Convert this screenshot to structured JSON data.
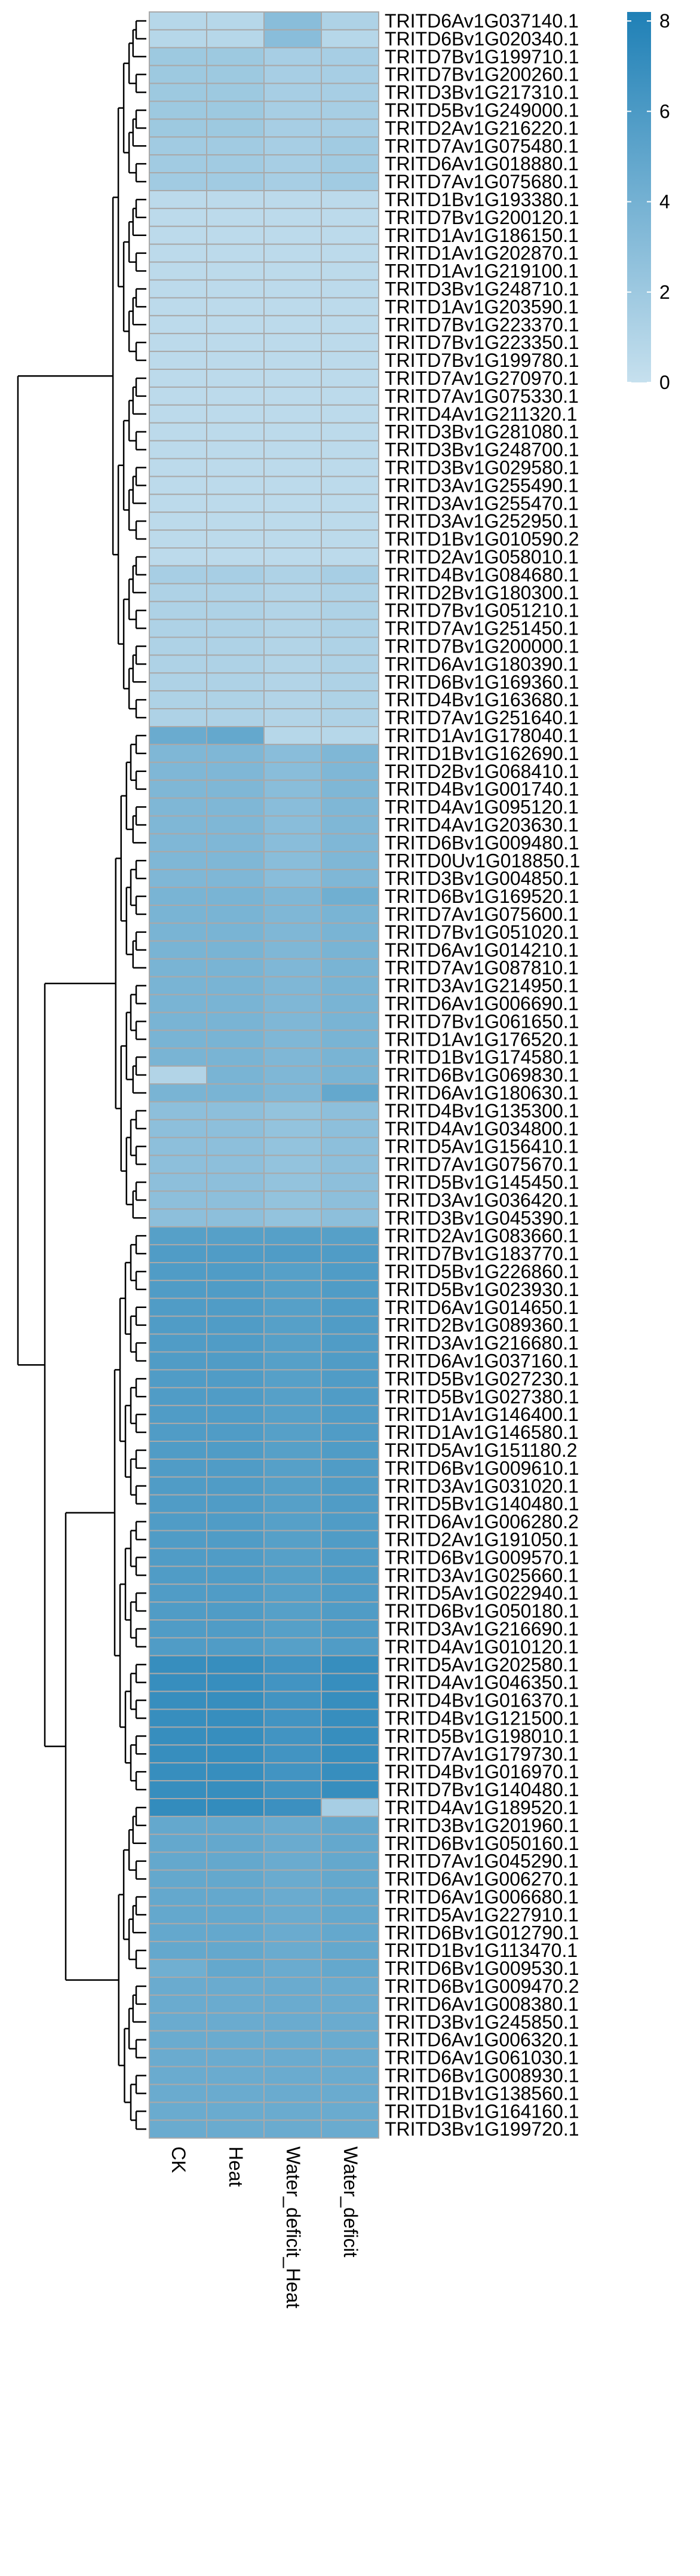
{
  "chart_data": {
    "type": "heatmap",
    "columns": [
      "CK",
      "Heat",
      "Water_deficit_Heat",
      "Water_deficit"
    ],
    "rows": [
      "TRITD6Av1G037140.1",
      "TRITD6Bv1G020340.1",
      "TRITD7Bv1G199710.1",
      "TRITD7Bv1G200260.1",
      "TRITD3Bv1G217310.1",
      "TRITD5Bv1G249000.1",
      "TRITD2Av1G216220.1",
      "TRITD7Av1G075480.1",
      "TRITD6Av1G018880.1",
      "TRITD7Av1G075680.1",
      "TRITD1Bv1G193380.1",
      "TRITD7Bv1G200120.1",
      "TRITD1Av1G186150.1",
      "TRITD1Av1G202870.1",
      "TRITD1Av1G219100.1",
      "TRITD3Bv1G248710.1",
      "TRITD1Av1G203590.1",
      "TRITD7Bv1G223370.1",
      "TRITD7Bv1G223350.1",
      "TRITD7Bv1G199780.1",
      "TRITD7Av1G270970.1",
      "TRITD7Av1G075330.1",
      "TRITD4Av1G211320.1",
      "TRITD3Bv1G281080.1",
      "TRITD3Bv1G248700.1",
      "TRITD3Bv1G029580.1",
      "TRITD3Av1G255490.1",
      "TRITD3Av1G255470.1",
      "TRITD3Av1G252950.1",
      "TRITD1Bv1G010590.2",
      "TRITD2Av1G058010.1",
      "TRITD4Bv1G084680.1",
      "TRITD2Bv1G180300.1",
      "TRITD7Bv1G051210.1",
      "TRITD7Av1G251450.1",
      "TRITD7Bv1G200000.1",
      "TRITD6Av1G180390.1",
      "TRITD6Bv1G169360.1",
      "TRITD4Bv1G163680.1",
      "TRITD7Av1G251640.1",
      "TRITD1Av1G178040.1",
      "TRITD1Bv1G162690.1",
      "TRITD2Bv1G068410.1",
      "TRITD4Bv1G001740.1",
      "TRITD4Av1G095120.1",
      "TRITD4Av1G203630.1",
      "TRITD6Bv1G009480.1",
      "TRITD0Uv1G018850.1",
      "TRITD3Bv1G004850.1",
      "TRITD6Bv1G169520.1",
      "TRITD7Av1G075600.1",
      "TRITD7Bv1G051020.1",
      "TRITD6Av1G014210.1",
      "TRITD7Av1G087810.1",
      "TRITD3Av1G214950.1",
      "TRITD6Av1G006690.1",
      "TRITD7Bv1G061650.1",
      "TRITD1Av1G176520.1",
      "TRITD1Bv1G174580.1",
      "TRITD6Bv1G069830.1",
      "TRITD6Av1G180630.1",
      "TRITD4Bv1G135300.1",
      "TRITD4Av1G034800.1",
      "TRITD5Av1G156410.1",
      "TRITD7Av1G075670.1",
      "TRITD5Bv1G145450.1",
      "TRITD3Av1G036420.1",
      "TRITD3Bv1G045390.1",
      "TRITD2Av1G083660.1",
      "TRITD7Bv1G183770.1",
      "TRITD5Bv1G226860.1",
      "TRITD5Bv1G023930.1",
      "TRITD6Av1G014650.1",
      "TRITD2Bv1G089360.1",
      "TRITD3Av1G216680.1",
      "TRITD6Av1G037160.1",
      "TRITD5Bv1G027230.1",
      "TRITD5Bv1G027380.1",
      "TRITD1Av1G146400.1",
      "TRITD1Av1G146580.1",
      "TRITD5Av1G151180.2",
      "TRITD6Bv1G009610.1",
      "TRITD3Av1G031020.1",
      "TRITD5Bv1G140480.1",
      "TRITD6Av1G006280.2",
      "TRITD2Av1G191050.1",
      "TRITD6Bv1G009570.1",
      "TRITD3Av1G025660.1",
      "TRITD5Av1G022940.1",
      "TRITD6Bv1G050180.1",
      "TRITD3Av1G216690.1",
      "TRITD4Av1G010120.1",
      "TRITD5Av1G202580.1",
      "TRITD4Av1G046350.1",
      "TRITD4Bv1G016370.1",
      "TRITD4Bv1G121500.1",
      "TRITD5Bv1G198010.1",
      "TRITD7Av1G179730.1",
      "TRITD4Bv1G016970.1",
      "TRITD7Bv1G140480.1",
      "TRITD4Av1G189520.1",
      "TRITD3Bv1G201960.1",
      "TRITD6Bv1G050160.1",
      "TRITD7Av1G045290.1",
      "TRITD6Av1G006270.1",
      "TRITD6Av1G006680.1",
      "TRITD5Av1G227910.1",
      "TRITD6Bv1G012790.1",
      "TRITD1Bv1G113470.1",
      "TRITD6Bv1G009530.1",
      "TRITD6Bv1G009470.2",
      "TRITD6Av1G008380.1",
      "TRITD3Bv1G245850.1",
      "TRITD6Av1G006320.1",
      "TRITD6Av1G061030.1",
      "TRITD6Bv1G008930.1",
      "TRITD1Bv1G138560.1",
      "TRITD1Bv1G164160.1",
      "TRITD3Bv1G199720.1"
    ],
    "values": [
      [
        0.8,
        0.8,
        3.0,
        1.2
      ],
      [
        0.8,
        0.8,
        3.0,
        0.8
      ],
      [
        2.0,
        2.0,
        1.5,
        1.5
      ],
      [
        2.0,
        2.0,
        1.5,
        1.5
      ],
      [
        2.0,
        2.0,
        1.5,
        1.5
      ],
      [
        2.0,
        2.0,
        1.5,
        1.5
      ],
      [
        2.0,
        2.0,
        1.5,
        1.5
      ],
      [
        1.8,
        1.8,
        1.5,
        1.8
      ],
      [
        1.8,
        1.8,
        1.5,
        1.8
      ],
      [
        1.8,
        1.8,
        1.5,
        1.8
      ],
      [
        0.5,
        0.5,
        0.5,
        0.5
      ],
      [
        0.5,
        0.5,
        0.5,
        0.5
      ],
      [
        0.5,
        0.5,
        0.5,
        0.5
      ],
      [
        0.5,
        0.5,
        0.5,
        0.5
      ],
      [
        0.5,
        0.5,
        0.5,
        0.5
      ],
      [
        0.5,
        0.5,
        0.5,
        0.5
      ],
      [
        0.5,
        0.5,
        0.5,
        0.5
      ],
      [
        0.5,
        0.5,
        0.5,
        0.5
      ],
      [
        0.5,
        0.5,
        0.5,
        0.5
      ],
      [
        0.5,
        0.5,
        0.5,
        0.5
      ],
      [
        0.5,
        0.5,
        0.5,
        0.5
      ],
      [
        0.5,
        0.5,
        0.5,
        0.5
      ],
      [
        0.5,
        0.5,
        0.5,
        0.5
      ],
      [
        0.5,
        0.5,
        0.5,
        0.5
      ],
      [
        0.5,
        0.5,
        0.5,
        0.5
      ],
      [
        0.5,
        0.5,
        0.5,
        0.5
      ],
      [
        0.5,
        0.5,
        0.5,
        0.5
      ],
      [
        0.5,
        0.5,
        0.5,
        0.5
      ],
      [
        0.5,
        0.5,
        0.5,
        0.5
      ],
      [
        0.5,
        0.5,
        0.5,
        0.5
      ],
      [
        0.5,
        0.5,
        0.5,
        0.5
      ],
      [
        1.5,
        1.5,
        1.2,
        1.5
      ],
      [
        1.2,
        1.2,
        1.0,
        1.2
      ],
      [
        1.2,
        1.2,
        1.0,
        1.2
      ],
      [
        1.2,
        1.2,
        1.0,
        1.2
      ],
      [
        1.2,
        1.2,
        1.0,
        1.2
      ],
      [
        1.2,
        1.2,
        1.0,
        1.2
      ],
      [
        1.2,
        1.2,
        1.0,
        1.2
      ],
      [
        1.2,
        1.2,
        1.0,
        1.2
      ],
      [
        1.2,
        1.2,
        1.0,
        1.2
      ],
      [
        4.5,
        4.8,
        0.8,
        0.8
      ],
      [
        3.5,
        3.5,
        3.0,
        3.5
      ],
      [
        3.5,
        3.5,
        3.0,
        3.5
      ],
      [
        3.5,
        3.5,
        3.0,
        3.5
      ],
      [
        3.5,
        3.5,
        3.0,
        3.5
      ],
      [
        3.5,
        3.5,
        3.0,
        3.5
      ],
      [
        3.5,
        3.5,
        3.0,
        3.5
      ],
      [
        3.5,
        3.5,
        3.0,
        3.5
      ],
      [
        3.5,
        3.5,
        3.0,
        3.5
      ],
      [
        3.8,
        3.8,
        3.5,
        4.2
      ],
      [
        3.8,
        3.8,
        3.5,
        3.8
      ],
      [
        3.8,
        3.8,
        3.5,
        3.8
      ],
      [
        3.8,
        3.8,
        3.5,
        3.8
      ],
      [
        3.8,
        3.8,
        3.5,
        3.8
      ],
      [
        3.8,
        3.8,
        3.5,
        3.8
      ],
      [
        3.8,
        3.8,
        3.5,
        3.8
      ],
      [
        3.8,
        3.8,
        3.5,
        3.8
      ],
      [
        3.8,
        3.8,
        3.5,
        3.8
      ],
      [
        3.8,
        3.8,
        3.5,
        3.8
      ],
      [
        1.0,
        3.8,
        3.5,
        3.8
      ],
      [
        3.8,
        3.8,
        3.5,
        4.8
      ],
      [
        2.8,
        2.8,
        2.5,
        2.8
      ],
      [
        2.8,
        2.8,
        2.5,
        2.8
      ],
      [
        2.8,
        2.8,
        2.5,
        2.8
      ],
      [
        2.8,
        2.8,
        2.5,
        2.8
      ],
      [
        2.8,
        2.8,
        2.5,
        2.8
      ],
      [
        2.8,
        2.8,
        2.5,
        2.8
      ],
      [
        2.8,
        2.8,
        2.5,
        2.8
      ],
      [
        5.5,
        5.5,
        5.5,
        5.5
      ],
      [
        5.8,
        5.8,
        5.8,
        5.8
      ],
      [
        5.8,
        5.8,
        5.5,
        5.8
      ],
      [
        5.8,
        5.8,
        5.5,
        5.8
      ],
      [
        5.8,
        5.8,
        5.5,
        5.8
      ],
      [
        5.8,
        5.8,
        5.5,
        5.8
      ],
      [
        5.8,
        5.8,
        5.5,
        5.8
      ],
      [
        5.8,
        5.8,
        5.5,
        5.8
      ],
      [
        5.8,
        5.8,
        5.5,
        5.8
      ],
      [
        5.8,
        5.8,
        5.5,
        5.8
      ],
      [
        5.8,
        5.8,
        5.5,
        5.8
      ],
      [
        5.8,
        5.8,
        5.5,
        5.8
      ],
      [
        5.8,
        5.8,
        5.5,
        5.8
      ],
      [
        5.8,
        5.8,
        5.5,
        5.8
      ],
      [
        5.8,
        5.8,
        5.5,
        5.8
      ],
      [
        5.8,
        5.8,
        5.5,
        5.8
      ],
      [
        5.8,
        5.8,
        5.5,
        5.8
      ],
      [
        5.8,
        5.8,
        5.5,
        5.8
      ],
      [
        5.8,
        5.8,
        5.5,
        5.8
      ],
      [
        5.8,
        5.8,
        5.5,
        5.8
      ],
      [
        5.8,
        5.8,
        5.5,
        5.8
      ],
      [
        5.8,
        5.8,
        5.5,
        5.8
      ],
      [
        5.8,
        5.8,
        5.5,
        5.8
      ],
      [
        5.8,
        5.8,
        5.5,
        5.8
      ],
      [
        7.0,
        7.0,
        6.5,
        7.0
      ],
      [
        7.0,
        7.0,
        6.5,
        7.0
      ],
      [
        7.0,
        7.0,
        6.5,
        7.0
      ],
      [
        7.0,
        7.0,
        6.5,
        7.0
      ],
      [
        7.0,
        7.0,
        6.5,
        7.0
      ],
      [
        7.0,
        7.0,
        6.5,
        7.0
      ],
      [
        7.0,
        7.0,
        6.5,
        7.0
      ],
      [
        7.0,
        7.0,
        6.5,
        7.0
      ],
      [
        7.2,
        7.2,
        6.8,
        1.5
      ],
      [
        4.8,
        4.8,
        4.5,
        4.8
      ],
      [
        4.8,
        4.8,
        4.5,
        4.8
      ],
      [
        4.8,
        4.8,
        4.5,
        4.8
      ],
      [
        4.8,
        4.8,
        4.5,
        4.8
      ],
      [
        4.8,
        4.8,
        4.5,
        4.8
      ],
      [
        4.8,
        4.8,
        4.5,
        4.8
      ],
      [
        4.8,
        4.8,
        4.5,
        4.8
      ],
      [
        4.8,
        4.8,
        4.5,
        4.8
      ],
      [
        4.2,
        4.8,
        4.5,
        4.8
      ],
      [
        4.5,
        4.5,
        4.5,
        4.5
      ],
      [
        4.5,
        4.5,
        4.5,
        4.5
      ],
      [
        4.5,
        4.5,
        4.5,
        4.5
      ],
      [
        4.5,
        4.5,
        4.5,
        4.5
      ],
      [
        4.5,
        4.5,
        4.5,
        4.5
      ],
      [
        4.5,
        4.5,
        4.5,
        4.5
      ],
      [
        4.5,
        4.5,
        4.5,
        4.5
      ],
      [
        4.5,
        4.5,
        4.5,
        4.5
      ],
      [
        4.5,
        4.5,
        4.5,
        4.5
      ]
    ],
    "color_scale": {
      "min": 0,
      "max": 8.2,
      "low_color": "#C6E0EE",
      "high_color": "#1F80B6",
      "cell_border": "#A9A9A9",
      "line_color": "#000000"
    },
    "legend": {
      "position": "top-right",
      "ticks": [
        "0",
        "2",
        "4",
        "6",
        "8"
      ],
      "tick_values": [
        0,
        2,
        4,
        6,
        8
      ]
    },
    "dendrogram": {
      "top_level_split": 40,
      "major_splits": [
        40,
        68,
        100
      ]
    }
  }
}
